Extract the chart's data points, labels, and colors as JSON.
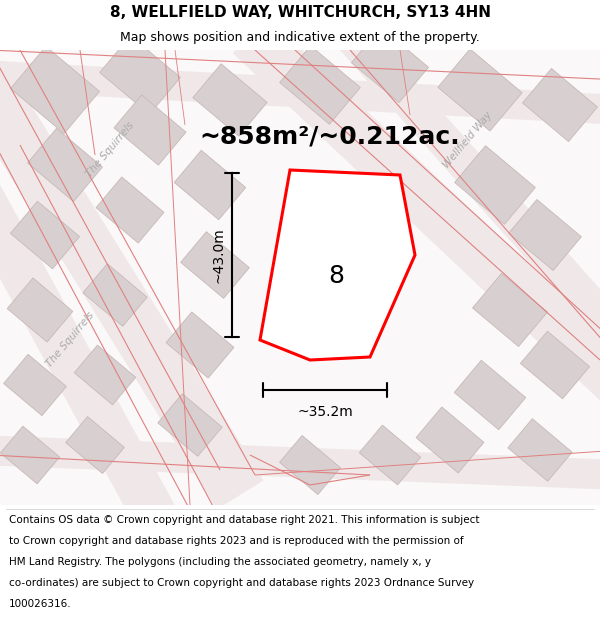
{
  "title": "8, WELLFIELD WAY, WHITCHURCH, SY13 4HN",
  "subtitle": "Map shows position and indicative extent of the property.",
  "area_text": "~858m²/~0.212ac.",
  "dim_width": "~35.2m",
  "dim_height": "~43.0m",
  "plot_number": "8",
  "background_color": "#ffffff",
  "map_bg_color": "#f5f0f0",
  "footer_text_lines": [
    "Contains OS data © Crown copyright and database right 2021. This information is subject",
    "to Crown copyright and database rights 2023 and is reproduced with the permission of",
    "HM Land Registry. The polygons (including the associated geometry, namely x, y",
    "co-ordinates) are subject to Crown copyright and database rights 2023 Ordnance Survey",
    "100026316."
  ],
  "road_line_color": "#e08080",
  "building_fill_color": "#d8d0d0",
  "building_edge_color": "#c8b8b8",
  "road_fill_color": "#f0e8e8",
  "title_fontsize": 11,
  "subtitle_fontsize": 9,
  "area_fontsize": 18,
  "plot_number_fontsize": 18,
  "dim_fontsize": 10,
  "footer_fontsize": 7.5
}
